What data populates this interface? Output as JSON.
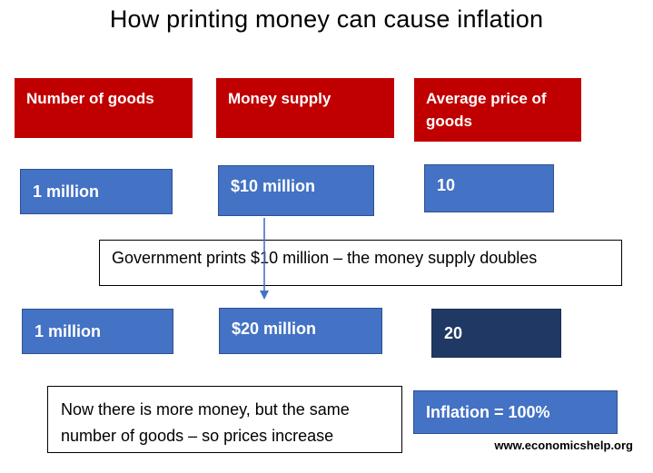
{
  "title": "How printing money can cause inflation",
  "headers": {
    "goods": "Number of goods",
    "money": "Money supply",
    "price": "Average price of goods"
  },
  "before": {
    "goods": "1 million",
    "money": "$10 million",
    "price": "10"
  },
  "event": "Government prints $10 million – the money supply doubles",
  "after": {
    "goods": "1 million",
    "money": "$20 million",
    "price": "20"
  },
  "explanation": "Now there is more money, but the same number of goods – so prices increase",
  "result": "Inflation = 100%",
  "source": "www.economicshelp.org",
  "colors": {
    "header_red": "#c00000",
    "box_blue": "#4472c4",
    "box_dark_blue": "#203864"
  }
}
